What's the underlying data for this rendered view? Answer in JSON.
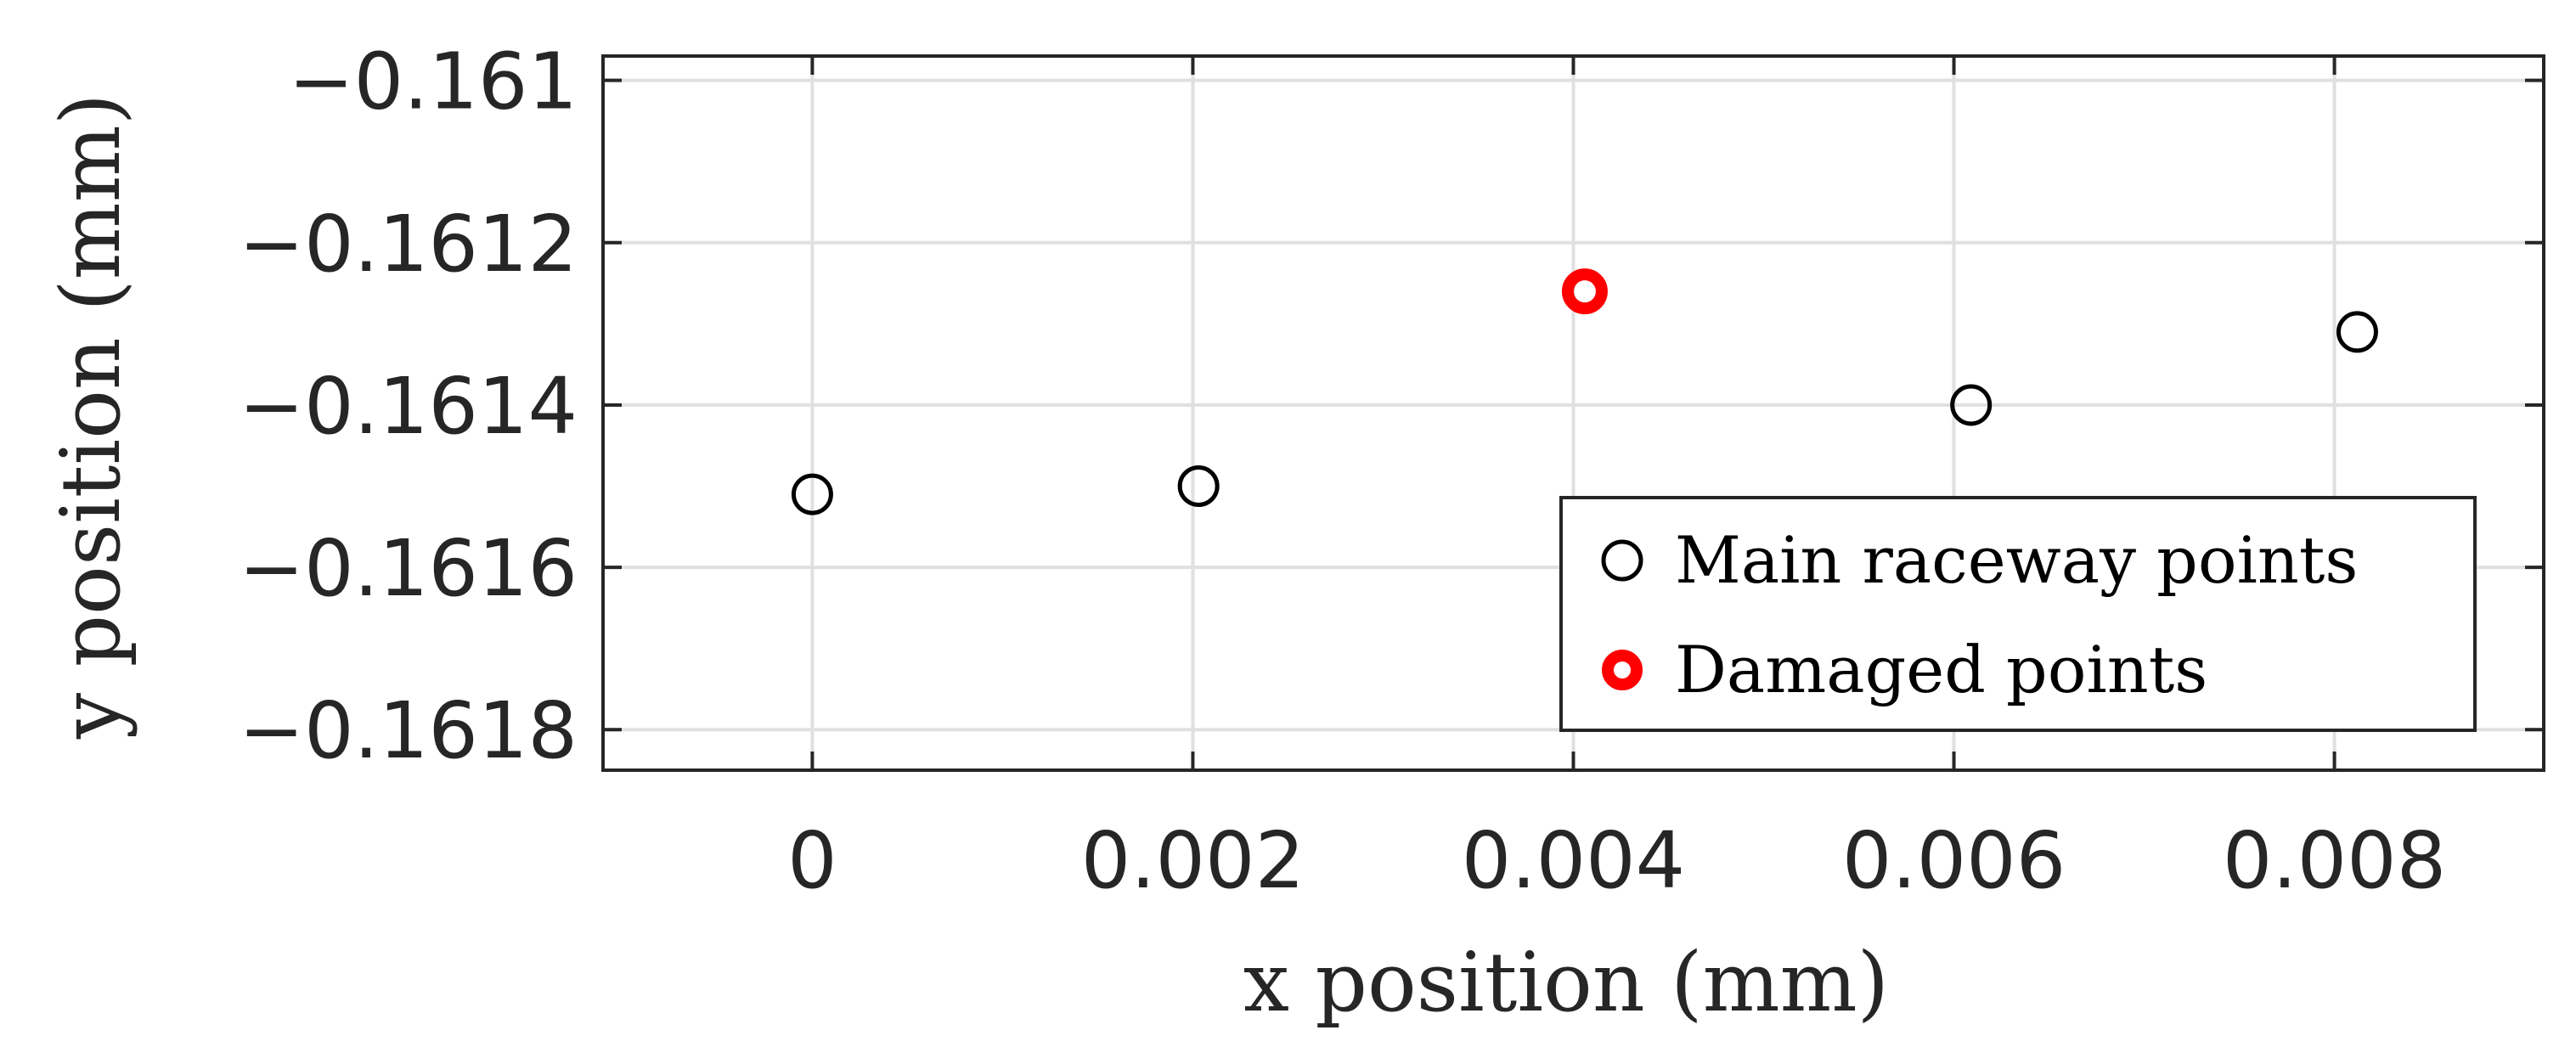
{
  "chart_data": {
    "type": "scatter",
    "title": "",
    "xlabel": "x position (mm)",
    "ylabel": "y position (mm)",
    "xlim": [
      -0.0011,
      0.0091
    ],
    "ylim": [
      -0.16185,
      -0.16097
    ],
    "grid": true,
    "legend_position": "bottom-right",
    "x_ticks": [
      0,
      0.002,
      0.004,
      0.006,
      0.008
    ],
    "x_tick_labels": [
      "0",
      "0.002",
      "0.004",
      "0.006",
      "0.008"
    ],
    "y_ticks": [
      -0.161,
      -0.1612,
      -0.1614,
      -0.1616,
      -0.1618
    ],
    "y_tick_labels": [
      "−0.161",
      "−0.1612",
      "−0.1614",
      "−0.1616",
      "−0.1618"
    ],
    "series": [
      {
        "name": "Main raceway points",
        "color": "#000000",
        "marker": "open-circle",
        "x": [
          0,
          0.00203,
          0.00609,
          0.00812
        ],
        "y": [
          -0.16151,
          -0.1615,
          -0.1614,
          -0.16131
        ]
      },
      {
        "name": "Damaged points",
        "color": "#ff0000",
        "marker": "thick-open-circle",
        "x": [
          0.00406
        ],
        "y": [
          -0.16126
        ]
      }
    ]
  }
}
